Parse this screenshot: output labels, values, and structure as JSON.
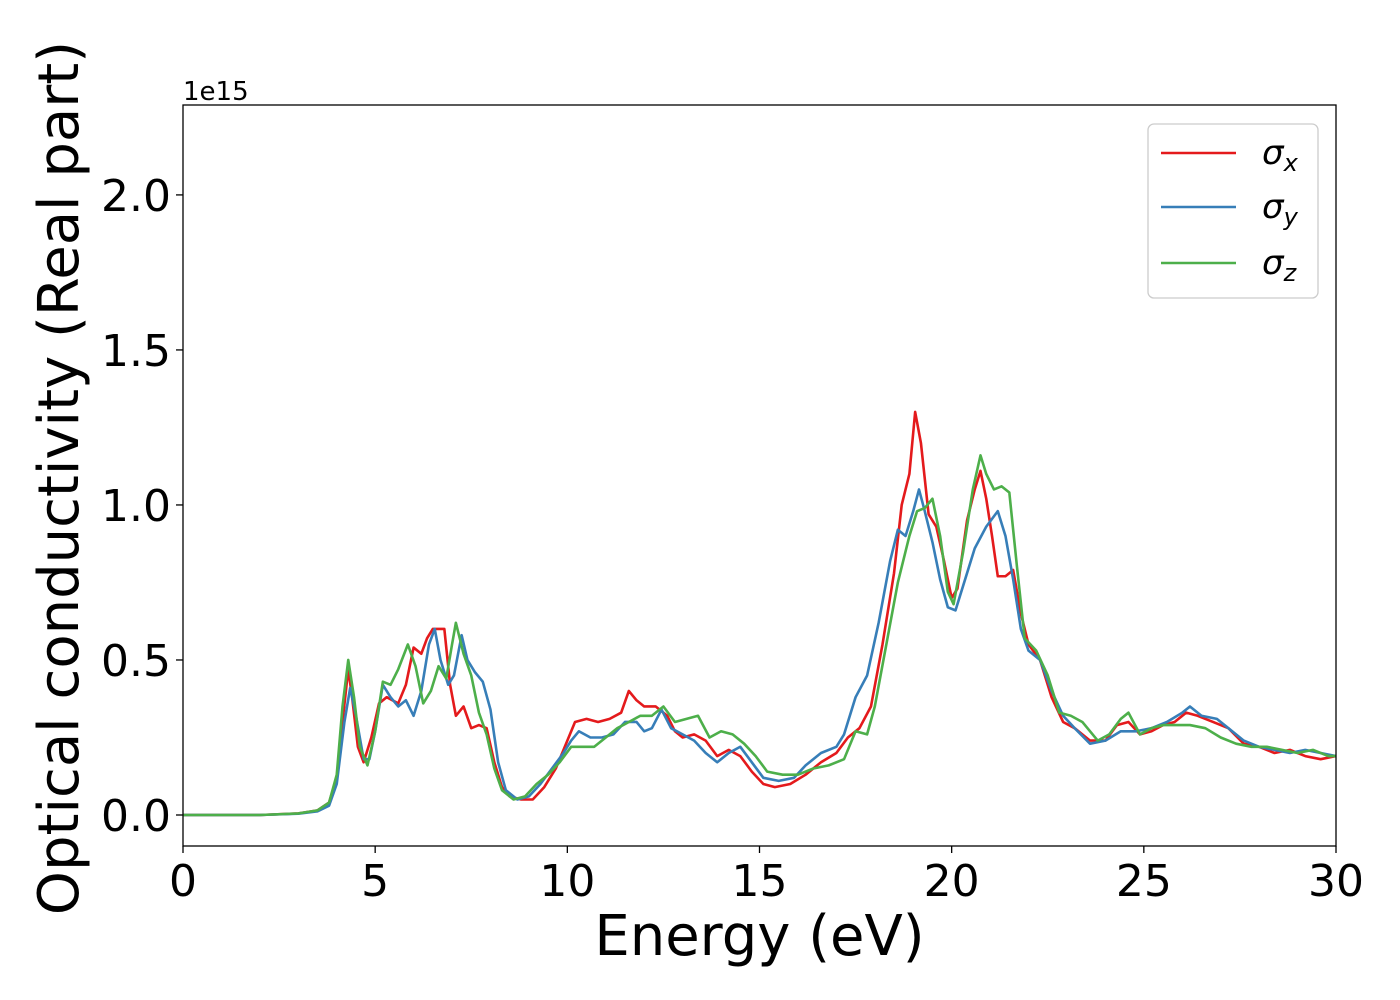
{
  "chart_data": {
    "type": "line",
    "title": "",
    "xlabel": "Energy (eV)",
    "ylabel": "Optical conductivity (Real part)",
    "y_offset_text": "1e15",
    "xlim": [
      0,
      30
    ],
    "ylim": [
      -0.1,
      2.29
    ],
    "xticks": [
      0,
      5,
      10,
      15,
      20,
      25,
      30
    ],
    "xtick_labels": [
      "0",
      "5",
      "10",
      "15",
      "20",
      "25",
      "30"
    ],
    "yticks": [
      0.0,
      0.5,
      1.0,
      1.5,
      2.0
    ],
    "ytick_labels": [
      "0.0",
      "0.5",
      "1.0",
      "1.5",
      "2.0"
    ],
    "grid": false,
    "legend_position": "top-right",
    "series": [
      {
        "name": "σx",
        "name_base": "σ",
        "name_sub": "x",
        "color": "#e41a1c",
        "points": [
          [
            0,
            0
          ],
          [
            2,
            0
          ],
          [
            3,
            0.005
          ],
          [
            3.5,
            0.015
          ],
          [
            3.8,
            0.04
          ],
          [
            4.0,
            0.12
          ],
          [
            4.15,
            0.3
          ],
          [
            4.3,
            0.47
          ],
          [
            4.4,
            0.38
          ],
          [
            4.55,
            0.22
          ],
          [
            4.7,
            0.17
          ],
          [
            4.9,
            0.25
          ],
          [
            5.1,
            0.36
          ],
          [
            5.3,
            0.38
          ],
          [
            5.6,
            0.36
          ],
          [
            5.8,
            0.42
          ],
          [
            6.0,
            0.54
          ],
          [
            6.2,
            0.52
          ],
          [
            6.35,
            0.57
          ],
          [
            6.5,
            0.6
          ],
          [
            6.6,
            0.6
          ],
          [
            6.8,
            0.6
          ],
          [
            6.95,
            0.42
          ],
          [
            7.1,
            0.32
          ],
          [
            7.3,
            0.35
          ],
          [
            7.5,
            0.28
          ],
          [
            7.7,
            0.29
          ],
          [
            7.9,
            0.28
          ],
          [
            8.1,
            0.17
          ],
          [
            8.3,
            0.09
          ],
          [
            8.5,
            0.06
          ],
          [
            8.8,
            0.05
          ],
          [
            9.1,
            0.05
          ],
          [
            9.4,
            0.09
          ],
          [
            9.7,
            0.15
          ],
          [
            10.0,
            0.24
          ],
          [
            10.2,
            0.3
          ],
          [
            10.5,
            0.31
          ],
          [
            10.8,
            0.3
          ],
          [
            11.1,
            0.31
          ],
          [
            11.4,
            0.33
          ],
          [
            11.6,
            0.4
          ],
          [
            11.8,
            0.37
          ],
          [
            12.0,
            0.35
          ],
          [
            12.3,
            0.35
          ],
          [
            12.6,
            0.32
          ],
          [
            12.8,
            0.27
          ],
          [
            13.0,
            0.25
          ],
          [
            13.3,
            0.26
          ],
          [
            13.6,
            0.24
          ],
          [
            13.9,
            0.19
          ],
          [
            14.2,
            0.21
          ],
          [
            14.5,
            0.19
          ],
          [
            14.8,
            0.14
          ],
          [
            15.1,
            0.1
          ],
          [
            15.4,
            0.09
          ],
          [
            15.8,
            0.1
          ],
          [
            16.2,
            0.13
          ],
          [
            16.6,
            0.17
          ],
          [
            17.0,
            0.2
          ],
          [
            17.3,
            0.25
          ],
          [
            17.6,
            0.28
          ],
          [
            17.9,
            0.35
          ],
          [
            18.2,
            0.55
          ],
          [
            18.5,
            0.78
          ],
          [
            18.7,
            1.0
          ],
          [
            18.9,
            1.1
          ],
          [
            19.05,
            1.3
          ],
          [
            19.2,
            1.2
          ],
          [
            19.4,
            0.97
          ],
          [
            19.6,
            0.93
          ],
          [
            19.8,
            0.82
          ],
          [
            20.0,
            0.7
          ],
          [
            20.15,
            0.73
          ],
          [
            20.4,
            0.95
          ],
          [
            20.6,
            1.05
          ],
          [
            20.75,
            1.11
          ],
          [
            20.9,
            1.02
          ],
          [
            21.05,
            0.9
          ],
          [
            21.2,
            0.77
          ],
          [
            21.4,
            0.77
          ],
          [
            21.6,
            0.79
          ],
          [
            21.8,
            0.65
          ],
          [
            22.0,
            0.55
          ],
          [
            22.3,
            0.5
          ],
          [
            22.6,
            0.38
          ],
          [
            22.9,
            0.3
          ],
          [
            23.2,
            0.28
          ],
          [
            23.6,
            0.24
          ],
          [
            24.0,
            0.24
          ],
          [
            24.3,
            0.29
          ],
          [
            24.6,
            0.3
          ],
          [
            24.9,
            0.26
          ],
          [
            25.2,
            0.27
          ],
          [
            25.5,
            0.29
          ],
          [
            25.8,
            0.3
          ],
          [
            26.1,
            0.33
          ],
          [
            26.4,
            0.32
          ],
          [
            26.8,
            0.3
          ],
          [
            27.2,
            0.28
          ],
          [
            27.6,
            0.23
          ],
          [
            28.0,
            0.22
          ],
          [
            28.4,
            0.2
          ],
          [
            28.8,
            0.21
          ],
          [
            29.2,
            0.19
          ],
          [
            29.6,
            0.18
          ],
          [
            30.0,
            0.19
          ]
        ]
      },
      {
        "name": "σy",
        "name_base": "σ",
        "name_sub": "y",
        "color": "#377eb8",
        "points": [
          [
            0,
            0
          ],
          [
            2,
            0
          ],
          [
            3,
            0.004
          ],
          [
            3.5,
            0.012
          ],
          [
            3.8,
            0.03
          ],
          [
            4.0,
            0.1
          ],
          [
            4.2,
            0.3
          ],
          [
            4.35,
            0.41
          ],
          [
            4.5,
            0.32
          ],
          [
            4.7,
            0.18
          ],
          [
            4.85,
            0.18
          ],
          [
            5.0,
            0.27
          ],
          [
            5.2,
            0.42
          ],
          [
            5.4,
            0.38
          ],
          [
            5.6,
            0.35
          ],
          [
            5.8,
            0.37
          ],
          [
            6.0,
            0.32
          ],
          [
            6.2,
            0.4
          ],
          [
            6.4,
            0.55
          ],
          [
            6.55,
            0.6
          ],
          [
            6.7,
            0.5
          ],
          [
            6.9,
            0.42
          ],
          [
            7.05,
            0.45
          ],
          [
            7.25,
            0.58
          ],
          [
            7.4,
            0.5
          ],
          [
            7.6,
            0.46
          ],
          [
            7.8,
            0.43
          ],
          [
            8.0,
            0.34
          ],
          [
            8.2,
            0.17
          ],
          [
            8.4,
            0.08
          ],
          [
            8.7,
            0.05
          ],
          [
            9.0,
            0.06
          ],
          [
            9.3,
            0.1
          ],
          [
            9.6,
            0.15
          ],
          [
            9.9,
            0.2
          ],
          [
            10.1,
            0.24
          ],
          [
            10.3,
            0.27
          ],
          [
            10.6,
            0.25
          ],
          [
            10.9,
            0.25
          ],
          [
            11.2,
            0.26
          ],
          [
            11.5,
            0.3
          ],
          [
            11.8,
            0.3
          ],
          [
            12.0,
            0.27
          ],
          [
            12.2,
            0.28
          ],
          [
            12.45,
            0.34
          ],
          [
            12.7,
            0.28
          ],
          [
            13.0,
            0.26
          ],
          [
            13.3,
            0.24
          ],
          [
            13.6,
            0.2
          ],
          [
            13.9,
            0.17
          ],
          [
            14.2,
            0.2
          ],
          [
            14.5,
            0.22
          ],
          [
            14.8,
            0.17
          ],
          [
            15.1,
            0.12
          ],
          [
            15.5,
            0.11
          ],
          [
            15.9,
            0.12
          ],
          [
            16.2,
            0.16
          ],
          [
            16.6,
            0.2
          ],
          [
            17.0,
            0.22
          ],
          [
            17.2,
            0.26
          ],
          [
            17.5,
            0.38
          ],
          [
            17.8,
            0.45
          ],
          [
            18.1,
            0.62
          ],
          [
            18.4,
            0.82
          ],
          [
            18.6,
            0.92
          ],
          [
            18.8,
            0.9
          ],
          [
            19.0,
            0.98
          ],
          [
            19.15,
            1.05
          ],
          [
            19.3,
            0.98
          ],
          [
            19.5,
            0.88
          ],
          [
            19.7,
            0.76
          ],
          [
            19.9,
            0.67
          ],
          [
            20.1,
            0.66
          ],
          [
            20.3,
            0.74
          ],
          [
            20.6,
            0.86
          ],
          [
            20.9,
            0.93
          ],
          [
            21.2,
            0.98
          ],
          [
            21.4,
            0.9
          ],
          [
            21.6,
            0.76
          ],
          [
            21.8,
            0.6
          ],
          [
            22.0,
            0.53
          ],
          [
            22.3,
            0.5
          ],
          [
            22.6,
            0.4
          ],
          [
            22.9,
            0.32
          ],
          [
            23.2,
            0.28
          ],
          [
            23.6,
            0.23
          ],
          [
            24.0,
            0.24
          ],
          [
            24.4,
            0.27
          ],
          [
            24.8,
            0.27
          ],
          [
            25.2,
            0.28
          ],
          [
            25.6,
            0.3
          ],
          [
            26.0,
            0.33
          ],
          [
            26.2,
            0.35
          ],
          [
            26.5,
            0.32
          ],
          [
            26.9,
            0.31
          ],
          [
            27.2,
            0.28
          ],
          [
            27.6,
            0.24
          ],
          [
            28.0,
            0.22
          ],
          [
            28.4,
            0.21
          ],
          [
            28.8,
            0.2
          ],
          [
            29.2,
            0.21
          ],
          [
            29.6,
            0.2
          ],
          [
            30.0,
            0.19
          ]
        ]
      },
      {
        "name": "σz",
        "name_base": "σ",
        "name_sub": "z",
        "color": "#4daf4a",
        "points": [
          [
            0,
            0
          ],
          [
            2,
            0
          ],
          [
            3,
            0.005
          ],
          [
            3.5,
            0.015
          ],
          [
            3.8,
            0.04
          ],
          [
            4.0,
            0.13
          ],
          [
            4.15,
            0.35
          ],
          [
            4.3,
            0.5
          ],
          [
            4.45,
            0.38
          ],
          [
            4.6,
            0.22
          ],
          [
            4.8,
            0.16
          ],
          [
            5.0,
            0.27
          ],
          [
            5.2,
            0.43
          ],
          [
            5.4,
            0.42
          ],
          [
            5.6,
            0.47
          ],
          [
            5.85,
            0.55
          ],
          [
            6.05,
            0.48
          ],
          [
            6.25,
            0.36
          ],
          [
            6.45,
            0.4
          ],
          [
            6.65,
            0.48
          ],
          [
            6.85,
            0.44
          ],
          [
            7.0,
            0.55
          ],
          [
            7.1,
            0.62
          ],
          [
            7.3,
            0.52
          ],
          [
            7.5,
            0.45
          ],
          [
            7.7,
            0.33
          ],
          [
            7.9,
            0.26
          ],
          [
            8.1,
            0.15
          ],
          [
            8.3,
            0.08
          ],
          [
            8.6,
            0.05
          ],
          [
            8.9,
            0.06
          ],
          [
            9.2,
            0.1
          ],
          [
            9.5,
            0.13
          ],
          [
            9.8,
            0.17
          ],
          [
            10.1,
            0.22
          ],
          [
            10.4,
            0.22
          ],
          [
            10.7,
            0.22
          ],
          [
            11.0,
            0.25
          ],
          [
            11.3,
            0.28
          ],
          [
            11.6,
            0.3
          ],
          [
            11.9,
            0.32
          ],
          [
            12.2,
            0.32
          ],
          [
            12.5,
            0.35
          ],
          [
            12.8,
            0.3
          ],
          [
            13.1,
            0.31
          ],
          [
            13.4,
            0.32
          ],
          [
            13.7,
            0.25
          ],
          [
            14.0,
            0.27
          ],
          [
            14.3,
            0.26
          ],
          [
            14.6,
            0.23
          ],
          [
            14.9,
            0.19
          ],
          [
            15.2,
            0.14
          ],
          [
            15.6,
            0.13
          ],
          [
            16.0,
            0.13
          ],
          [
            16.4,
            0.15
          ],
          [
            16.8,
            0.16
          ],
          [
            17.2,
            0.18
          ],
          [
            17.5,
            0.27
          ],
          [
            17.8,
            0.26
          ],
          [
            18.0,
            0.35
          ],
          [
            18.3,
            0.55
          ],
          [
            18.6,
            0.75
          ],
          [
            18.9,
            0.9
          ],
          [
            19.1,
            0.98
          ],
          [
            19.3,
            0.99
          ],
          [
            19.5,
            1.02
          ],
          [
            19.7,
            0.9
          ],
          [
            19.9,
            0.72
          ],
          [
            20.05,
            0.68
          ],
          [
            20.3,
            0.85
          ],
          [
            20.55,
            1.05
          ],
          [
            20.75,
            1.16
          ],
          [
            20.9,
            1.1
          ],
          [
            21.1,
            1.05
          ],
          [
            21.3,
            1.06
          ],
          [
            21.5,
            1.04
          ],
          [
            21.7,
            0.8
          ],
          [
            21.9,
            0.57
          ],
          [
            22.2,
            0.53
          ],
          [
            22.5,
            0.45
          ],
          [
            22.8,
            0.33
          ],
          [
            23.1,
            0.32
          ],
          [
            23.4,
            0.3
          ],
          [
            23.8,
            0.24
          ],
          [
            24.1,
            0.26
          ],
          [
            24.4,
            0.31
          ],
          [
            24.6,
            0.33
          ],
          [
            24.9,
            0.26
          ],
          [
            25.2,
            0.28
          ],
          [
            25.5,
            0.29
          ],
          [
            25.8,
            0.29
          ],
          [
            26.2,
            0.29
          ],
          [
            26.6,
            0.28
          ],
          [
            27.0,
            0.25
          ],
          [
            27.4,
            0.23
          ],
          [
            27.8,
            0.22
          ],
          [
            28.2,
            0.22
          ],
          [
            28.6,
            0.21
          ],
          [
            29.0,
            0.2
          ],
          [
            29.4,
            0.21
          ],
          [
            29.8,
            0.19
          ],
          [
            30.0,
            0.19
          ]
        ]
      }
    ]
  }
}
